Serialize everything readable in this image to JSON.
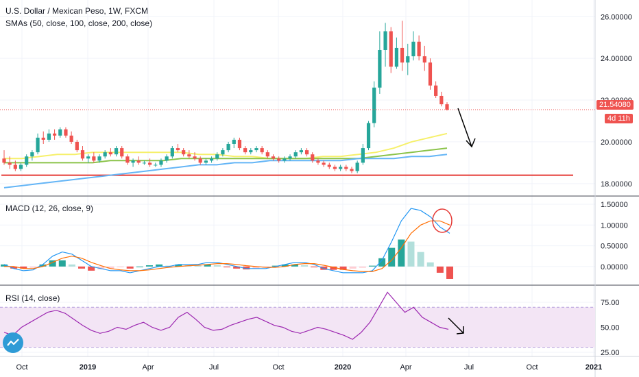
{
  "header": {
    "title": "U.S. Dollar / Mexican Peso, 1W, FXCM",
    "sma_label": "SMAs (50, close, 100, close, 200, close)"
  },
  "panes": {
    "macd_label": "MACD (12, 26, close, 9)",
    "rsi_label": "RSI (14, close)"
  },
  "price_tag": {
    "value": "21.54080",
    "countdown": "4d 11h",
    "color": "#ef5350"
  },
  "colors": {
    "up": "#26a69a",
    "down": "#ef5350",
    "sma50": "#f6f06a",
    "sma100": "#8bc34a",
    "sma200": "#64b5f6",
    "support": "#e53935",
    "macd": "#2196f3",
    "signal": "#ff6d00",
    "rsi": "#9c27b0",
    "rsi_band": "#f3e5f5"
  },
  "icons": [
    "tradingview-logo-icon"
  ],
  "chart_data": [
    {
      "type": "candlestick",
      "title": "U.S. Dollar / Mexican Peso, 1W, FXCM",
      "x_labels": [
        "Oct",
        "2019",
        "Apr",
        "Jul",
        "Oct",
        "2020",
        "Apr",
        "Jul",
        "Oct",
        "2021"
      ],
      "y_ticks": [
        "26.00000",
        "24.00000",
        "22.00000",
        "20.00000",
        "18.00000"
      ],
      "ylim": [
        17.6,
        26.6
      ],
      "ohlc": [
        [
          19.2,
          19.6,
          18.9,
          19.0
        ],
        [
          19.0,
          19.3,
          18.7,
          18.9
        ],
        [
          18.9,
          19.1,
          18.6,
          18.7
        ],
        [
          18.7,
          19.0,
          18.6,
          18.9
        ],
        [
          18.9,
          19.4,
          18.8,
          19.3
        ],
        [
          19.3,
          19.6,
          19.1,
          19.5
        ],
        [
          19.5,
          20.4,
          19.4,
          20.2
        ],
        [
          20.2,
          20.5,
          19.9,
          20.1
        ],
        [
          20.1,
          20.6,
          20.0,
          20.4
        ],
        [
          20.4,
          20.6,
          20.1,
          20.3
        ],
        [
          20.3,
          20.7,
          20.2,
          20.6
        ],
        [
          20.6,
          20.7,
          20.2,
          20.3
        ],
        [
          20.3,
          20.5,
          19.9,
          20.0
        ],
        [
          20.0,
          20.1,
          19.5,
          19.6
        ],
        [
          19.6,
          19.8,
          19.1,
          19.2
        ],
        [
          19.2,
          19.4,
          19.0,
          19.3
        ],
        [
          19.3,
          19.5,
          19.0,
          19.1
        ],
        [
          19.1,
          19.4,
          19.0,
          19.3
        ],
        [
          19.3,
          19.6,
          19.2,
          19.5
        ],
        [
          19.5,
          19.7,
          19.3,
          19.4
        ],
        [
          19.4,
          19.8,
          19.3,
          19.7
        ],
        [
          19.7,
          19.8,
          19.2,
          19.3
        ],
        [
          19.3,
          19.4,
          18.9,
          19.0
        ],
        [
          19.0,
          19.2,
          18.8,
          19.1
        ],
        [
          19.1,
          19.3,
          18.9,
          19.0
        ],
        [
          19.0,
          19.1,
          18.9,
          19.0
        ],
        [
          19.0,
          19.2,
          18.8,
          18.9
        ],
        [
          18.9,
          19.0,
          18.8,
          18.9
        ],
        [
          18.9,
          19.2,
          18.8,
          19.1
        ],
        [
          19.1,
          19.4,
          19.0,
          19.3
        ],
        [
          19.3,
          19.8,
          19.2,
          19.7
        ],
        [
          19.7,
          19.9,
          19.5,
          19.6
        ],
        [
          19.6,
          19.7,
          19.3,
          19.4
        ],
        [
          19.4,
          19.6,
          19.2,
          19.3
        ],
        [
          19.3,
          19.5,
          19.1,
          19.2
        ],
        [
          19.2,
          19.3,
          18.9,
          19.0
        ],
        [
          19.0,
          19.2,
          18.9,
          19.1
        ],
        [
          19.1,
          19.3,
          19.0,
          19.2
        ],
        [
          19.2,
          19.5,
          19.1,
          19.4
        ],
        [
          19.4,
          19.7,
          19.3,
          19.6
        ],
        [
          19.6,
          20.0,
          19.5,
          19.9
        ],
        [
          19.9,
          20.2,
          19.7,
          20.1
        ],
        [
          20.1,
          20.2,
          19.6,
          19.7
        ],
        [
          19.7,
          19.8,
          19.4,
          19.5
        ],
        [
          19.5,
          19.7,
          19.4,
          19.6
        ],
        [
          19.6,
          19.8,
          19.5,
          19.7
        ],
        [
          19.7,
          19.8,
          19.4,
          19.5
        ],
        [
          19.5,
          19.6,
          19.2,
          19.3
        ],
        [
          19.3,
          19.4,
          19.1,
          19.2
        ],
        [
          19.2,
          19.3,
          19.0,
          19.1
        ],
        [
          19.1,
          19.3,
          19.0,
          19.2
        ],
        [
          19.2,
          19.4,
          19.1,
          19.3
        ],
        [
          19.3,
          19.6,
          19.2,
          19.5
        ],
        [
          19.5,
          19.7,
          19.4,
          19.6
        ],
        [
          19.6,
          19.7,
          19.3,
          19.4
        ],
        [
          19.4,
          19.5,
          19.0,
          19.1
        ],
        [
          19.1,
          19.2,
          18.9,
          19.0
        ],
        [
          19.0,
          19.1,
          18.8,
          18.9
        ],
        [
          18.9,
          19.0,
          18.7,
          18.8
        ],
        [
          18.8,
          18.9,
          18.6,
          18.7
        ],
        [
          18.7,
          18.9,
          18.6,
          18.8
        ],
        [
          18.8,
          18.9,
          18.6,
          18.7
        ],
        [
          18.7,
          18.8,
          18.5,
          18.6
        ],
        [
          18.6,
          19.1,
          18.5,
          19.0
        ],
        [
          19.0,
          19.9,
          18.9,
          19.7
        ],
        [
          19.7,
          21.0,
          19.6,
          20.9
        ],
        [
          20.9,
          22.9,
          20.7,
          22.6
        ],
        [
          22.6,
          25.3,
          22.3,
          24.4
        ],
        [
          24.4,
          25.7,
          23.6,
          25.3
        ],
        [
          25.3,
          25.5,
          23.3,
          23.6
        ],
        [
          23.6,
          25.0,
          23.5,
          24.5
        ],
        [
          24.5,
          25.8,
          23.4,
          23.8
        ],
        [
          23.8,
          24.7,
          23.2,
          24.1
        ],
        [
          24.1,
          25.3,
          23.9,
          24.8
        ],
        [
          24.8,
          25.1,
          23.9,
          24.1
        ],
        [
          24.1,
          24.6,
          23.4,
          23.8
        ],
        [
          23.8,
          24.0,
          22.5,
          22.7
        ],
        [
          22.7,
          22.9,
          22.1,
          22.2
        ],
        [
          22.2,
          22.4,
          21.7,
          21.8
        ],
        [
          21.8,
          21.9,
          21.5,
          21.54
        ]
      ],
      "series": [
        {
          "name": "SMA 50",
          "values": [
            19.2,
            19.2,
            19.3,
            19.4,
            19.4,
            19.5,
            19.5,
            19.5,
            19.5,
            19.5,
            19.5,
            19.4,
            19.4,
            19.3,
            19.3,
            19.2,
            19.2,
            19.2,
            19.3,
            19.3,
            19.4,
            19.5,
            19.7,
            20.0,
            20.2,
            20.4
          ]
        },
        {
          "name": "SMA 100",
          "values": [
            19.0,
            19.0,
            19.0,
            19.0,
            19.0,
            19.0,
            19.1,
            19.1,
            19.1,
            19.1,
            19.2,
            19.2,
            19.2,
            19.2,
            19.2,
            19.2,
            19.2,
            19.2,
            19.2,
            19.2,
            19.2,
            19.3,
            19.4,
            19.5,
            19.6,
            19.7
          ]
        },
        {
          "name": "SMA 200",
          "values": [
            17.8,
            17.9,
            18.0,
            18.1,
            18.2,
            18.3,
            18.4,
            18.5,
            18.6,
            18.7,
            18.8,
            18.9,
            18.9,
            19.0,
            19.0,
            19.1,
            19.1,
            19.1,
            19.1,
            19.1,
            19.2,
            19.2,
            19.2,
            19.3,
            19.3,
            19.4
          ]
        }
      ],
      "support_level": 18.4
    },
    {
      "type": "line",
      "title": "MACD (12, 26, close, 9)",
      "y_ticks": [
        "1.50000",
        "1.00000",
        "0.50000",
        "0.00000"
      ],
      "ylim": [
        -0.35,
        1.6
      ],
      "series": [
        {
          "name": "MACD",
          "values": [
            0.05,
            -0.05,
            -0.1,
            -0.08,
            0.05,
            0.25,
            0.35,
            0.3,
            0.15,
            0.0,
            -0.05,
            -0.1,
            -0.1,
            -0.15,
            -0.1,
            -0.05,
            0.0,
            0.0,
            0.05,
            0.05,
            0.05,
            0.1,
            0.1,
            0.05,
            0.0,
            -0.05,
            -0.05,
            -0.05,
            0.0,
            0.05,
            0.1,
            0.1,
            0.05,
            -0.05,
            -0.1,
            -0.15,
            -0.15,
            -0.15,
            -0.1,
            0.15,
            0.6,
            1.1,
            1.4,
            1.35,
            1.2,
            0.95,
            0.8
          ]
        },
        {
          "name": "Signal",
          "values": [
            0.0,
            0.0,
            -0.05,
            -0.05,
            0.0,
            0.1,
            0.2,
            0.25,
            0.2,
            0.1,
            0.02,
            -0.05,
            -0.08,
            -0.1,
            -0.1,
            -0.08,
            -0.05,
            -0.02,
            0.0,
            0.02,
            0.03,
            0.05,
            0.07,
            0.07,
            0.05,
            0.02,
            0.0,
            -0.02,
            -0.02,
            0.0,
            0.05,
            0.07,
            0.07,
            0.03,
            -0.02,
            -0.07,
            -0.1,
            -0.12,
            -0.12,
            -0.05,
            0.15,
            0.45,
            0.8,
            1.0,
            1.1,
            1.1,
            1.0
          ]
        },
        {
          "name": "Histogram",
          "values": [
            0.05,
            -0.05,
            -0.05,
            -0.03,
            0.05,
            0.15,
            0.15,
            0.05,
            -0.05,
            -0.1,
            -0.07,
            -0.05,
            -0.02,
            -0.05,
            0.0,
            0.03,
            0.05,
            0.02,
            0.05,
            0.03,
            0.02,
            0.05,
            0.03,
            -0.02,
            -0.05,
            -0.07,
            -0.05,
            -0.03,
            0.02,
            0.05,
            0.05,
            0.03,
            -0.02,
            -0.08,
            -0.08,
            -0.08,
            -0.05,
            -0.03,
            0.02,
            0.2,
            0.45,
            0.65,
            0.6,
            0.35,
            0.1,
            -0.15,
            -0.3
          ]
        }
      ]
    },
    {
      "type": "line",
      "title": "RSI (14, close)",
      "y_ticks": [
        "75.00",
        "50.00",
        "25.00"
      ],
      "ylim": [
        25,
        88
      ],
      "bands": [
        30,
        70
      ],
      "series": [
        {
          "name": "RSI",
          "values": [
            45,
            42,
            50,
            55,
            60,
            65,
            67,
            64,
            58,
            52,
            47,
            44,
            46,
            50,
            48,
            52,
            55,
            50,
            47,
            50,
            60,
            65,
            58,
            50,
            47,
            48,
            52,
            55,
            58,
            60,
            56,
            52,
            50,
            46,
            44,
            47,
            50,
            48,
            45,
            42,
            38,
            45,
            55,
            70,
            85,
            75,
            65,
            70,
            60,
            55,
            50,
            48
          ]
        }
      ]
    }
  ]
}
